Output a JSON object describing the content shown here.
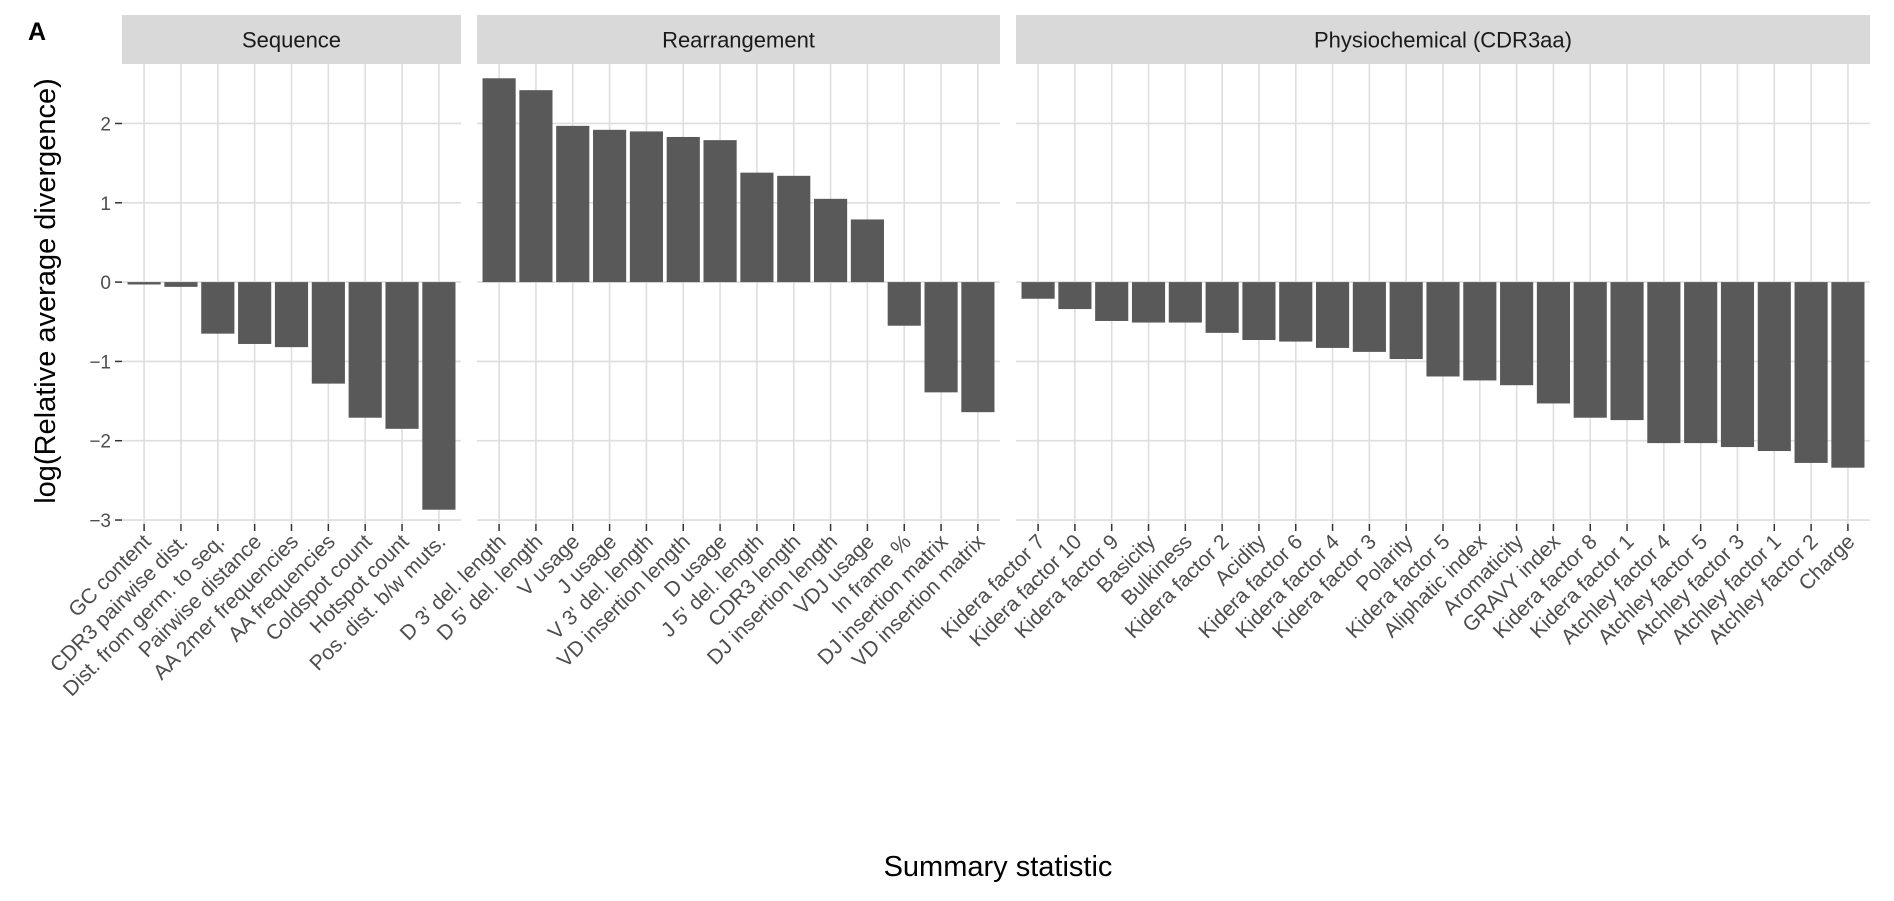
{
  "panel_tag": "A",
  "chart_data": {
    "type": "bar",
    "ylabel": "log(Relative average divergence)",
    "xlabel": "Summary statistic",
    "ylim": [
      -3.05,
      2.75
    ],
    "yticks": [
      -3,
      -2,
      -1,
      0,
      1,
      2
    ],
    "ytick_labels": [
      "−3",
      "−2",
      "−1",
      "0",
      "1",
      "2"
    ],
    "grid": true,
    "bar_color": "#595959",
    "panel_background": "#ffffff",
    "grid_color": "#dedede",
    "strip_color": "#d9d9d9",
    "facets": [
      {
        "name": "Sequence",
        "categories": [
          "GC content",
          "CDR3 pairwise dist.",
          "Dist. from germ. to seq.",
          "Pairwise distance",
          "AA 2mer frequencies",
          "AA frequencies",
          "Coldspot count",
          "Hotspot count",
          "Pos. dist. b/w muts."
        ],
        "values": [
          -0.03,
          -0.06,
          -0.65,
          -0.78,
          -0.82,
          -1.28,
          -1.71,
          -1.85,
          -2.87
        ]
      },
      {
        "name": "Rearrangement",
        "categories": [
          "D 3' del. length",
          "D 5' del. length",
          "V usage",
          "J usage",
          "V 3' del. length",
          "VD insertion length",
          "D usage",
          "J 5' del. length",
          "CDR3 length",
          "DJ insertion length",
          "VDJ usage",
          "In frame %",
          "DJ insertion matrix",
          "VD insertion matrix"
        ],
        "values": [
          2.57,
          2.42,
          1.97,
          1.92,
          1.9,
          1.83,
          1.79,
          1.38,
          1.34,
          1.05,
          0.79,
          -0.55,
          -1.39,
          -1.64
        ]
      },
      {
        "name": "Physiochemical (CDR3aa)",
        "categories": [
          "Kidera factor 7",
          "Kidera factor 10",
          "Kidera factor 9",
          "Basicity",
          "Bulkiness",
          "Kidera factor 2",
          "Acidity",
          "Kidera factor 6",
          "Kidera factor 4",
          "Kidera factor 3",
          "Polarity",
          "Kidera factor 5",
          "Aliphatic index",
          "Aromaticity",
          "GRAVY index",
          "Kidera factor 8",
          "Kidera factor 1",
          "Atchley factor 4",
          "Atchley factor 5",
          "Atchley factor 3",
          "Atchley factor 1",
          "Atchley factor 2",
          "Charge"
        ],
        "values": [
          -0.21,
          -0.34,
          -0.49,
          -0.51,
          -0.51,
          -0.64,
          -0.73,
          -0.75,
          -0.83,
          -0.88,
          -0.97,
          -1.19,
          -1.24,
          -1.3,
          -1.53,
          -1.71,
          -1.74,
          -2.03,
          -2.03,
          -2.08,
          -2.13,
          -2.28,
          -2.34
        ]
      }
    ]
  }
}
